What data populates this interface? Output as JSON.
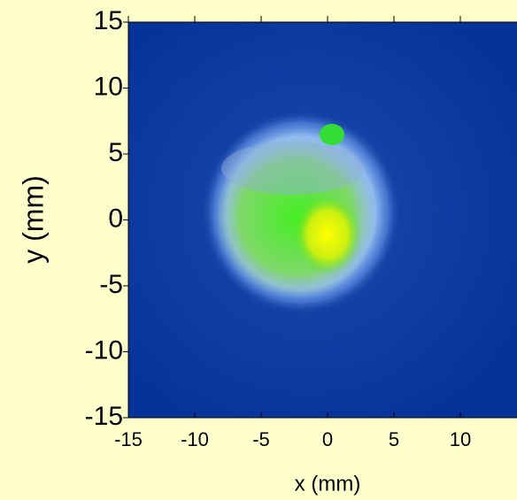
{
  "chart_data": {
    "type": "heatmap",
    "xlabel": "x  (mm)",
    "ylabel": "y  (mm)",
    "xlim": [
      -15,
      15
    ],
    "ylim": [
      -15,
      15
    ],
    "xticks": [
      -15,
      -10,
      -5,
      0,
      5,
      10
    ],
    "yticks": [
      -15,
      -10,
      -5,
      0,
      5,
      10,
      15
    ]
  }
}
